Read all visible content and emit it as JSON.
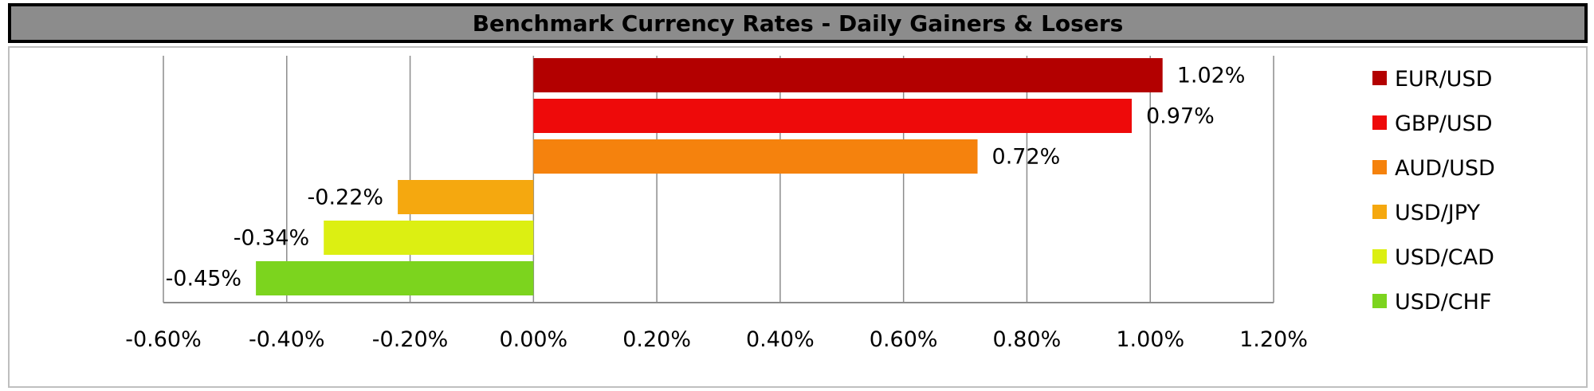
{
  "chart_data": {
    "type": "bar",
    "orientation": "horizontal",
    "title": "Benchmark Currency Rates - Daily Gainers & Losers",
    "categories": [
      "EUR/USD",
      "GBP/USD",
      "AUD/USD",
      "USD/JPY",
      "USD/CAD",
      "USD/CHF"
    ],
    "values": [
      1.02,
      0.97,
      0.72,
      -0.22,
      -0.34,
      -0.45
    ],
    "data_labels": [
      "1.02%",
      "0.97%",
      "0.72%",
      "-0.22%",
      "-0.34%",
      "-0.45%"
    ],
    "colors": [
      "#b30000",
      "#ee0a0a",
      "#f5820d",
      "#f5a80f",
      "#dcef12",
      "#7cd41e"
    ],
    "xlim": [
      -0.6,
      1.2
    ],
    "x_ticks": [
      -0.6,
      -0.4,
      -0.2,
      0.0,
      0.2,
      0.4,
      0.6,
      0.8,
      1.0,
      1.2
    ],
    "x_tick_labels": [
      "-0.60%",
      "-0.40%",
      "-0.20%",
      "0.00%",
      "0.20%",
      "0.40%",
      "0.60%",
      "0.80%",
      "1.00%",
      "1.20%"
    ],
    "xlabel": "",
    "ylabel": "",
    "grid": "vertical",
    "legend": {
      "position": "right",
      "entries": [
        "EUR/USD",
        "GBP/USD",
        "AUD/USD",
        "USD/JPY",
        "USD/CAD",
        "USD/CHF"
      ]
    }
  },
  "style": {
    "title_bg": "#8c8c8c",
    "grid_color": "#8c8c8c",
    "axis_color": "#8c8c8c"
  }
}
